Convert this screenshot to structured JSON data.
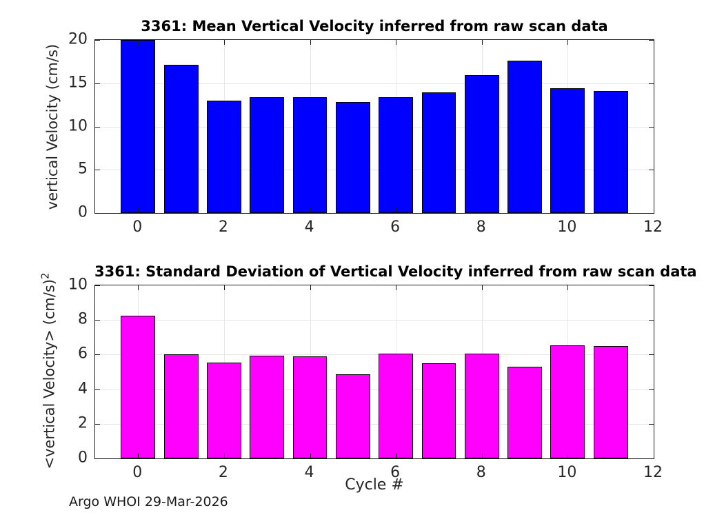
{
  "figure": {
    "footer": "Argo WHOI 29-Mar-2026",
    "background_color": "#ffffff",
    "grid_color": "#e6e6e6",
    "axis_color": "#1a1a1a",
    "text_color": "#262626"
  },
  "chart_data": [
    {
      "type": "bar",
      "title": "3361: Mean Vertical Velocity inferred from raw scan data",
      "ylabel": "vertical Velocity (cm/s)",
      "ylabel_sup": "",
      "xlabel": "",
      "bar_color": "#0000ff",
      "bar_edge_color": "#000000",
      "categories": [
        0,
        1,
        2,
        3,
        4,
        5,
        6,
        7,
        8,
        9,
        10,
        11
      ],
      "values": [
        20.1,
        17.1,
        12.95,
        13.4,
        13.35,
        12.85,
        13.4,
        13.95,
        15.9,
        17.6,
        14.4,
        14.1
      ],
      "bar_width": 0.8,
      "xlim": [
        -1,
        12
      ],
      "ylim": [
        0,
        20
      ],
      "xticks": [
        0,
        2,
        4,
        6,
        8,
        10,
        12
      ],
      "yticks": [
        0,
        5,
        10,
        15,
        20
      ],
      "grid": true,
      "legend": "none"
    },
    {
      "type": "bar",
      "title": "3361: Standard Deviation of Vertical Velocity inferred from raw scan data",
      "ylabel": "<vertical Velocity> (cm/s)",
      "ylabel_sup": "2",
      "xlabel": "Cycle #",
      "bar_color": "#ff00ff",
      "bar_edge_color": "#000000",
      "categories": [
        0,
        1,
        2,
        3,
        4,
        5,
        6,
        7,
        8,
        9,
        10,
        11
      ],
      "values": [
        8.25,
        6.0,
        5.55,
        5.95,
        5.9,
        4.85,
        6.05,
        5.5,
        6.05,
        5.3,
        6.55,
        6.5
      ],
      "bar_width": 0.8,
      "xlim": [
        -1,
        12
      ],
      "ylim": [
        0,
        10
      ],
      "xticks": [
        0,
        2,
        4,
        6,
        8,
        10,
        12
      ],
      "yticks": [
        0,
        2,
        4,
        6,
        8,
        10
      ],
      "grid": true,
      "legend": "none"
    }
  ]
}
